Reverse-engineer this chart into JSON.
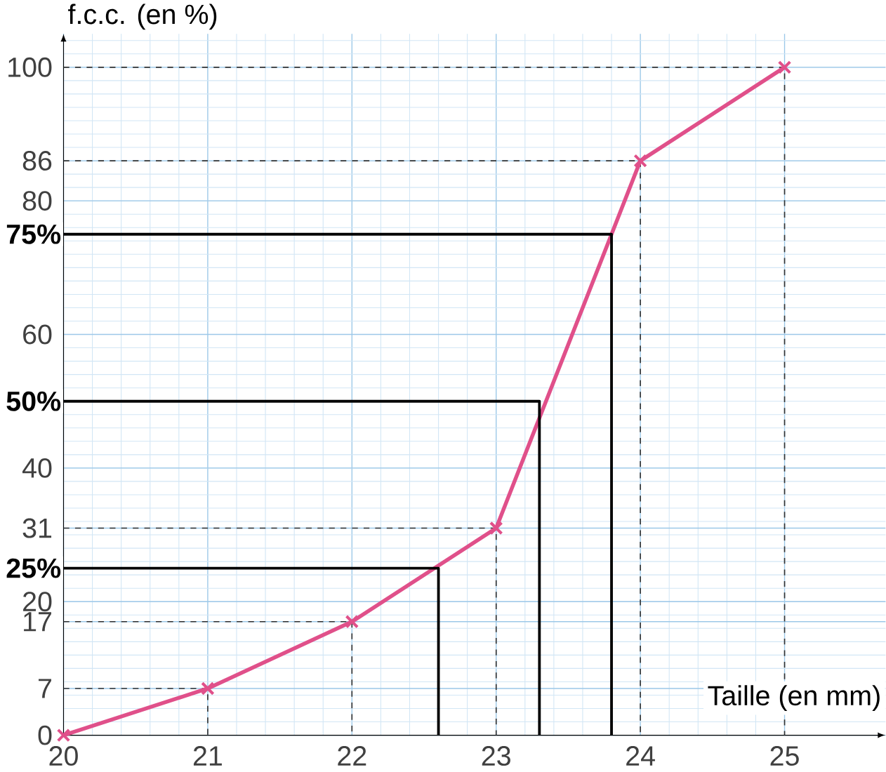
{
  "chart_data": {
    "type": "line",
    "xlabel": "Taille (en mm)",
    "ylabel": "f.c.c. (en %)",
    "x": [
      20,
      21,
      22,
      23,
      24,
      25
    ],
    "series": [
      {
        "color": "#333333",
        "line_style": "dashed",
        "marker": "none",
        "x": [
          20,
          21,
          21
        ],
        "values": [
          7,
          7,
          0
        ]
      },
      {
        "color": "#333333",
        "line_style": "dashed",
        "marker": "none",
        "x": [
          20,
          22,
          22
        ],
        "values": [
          17,
          17,
          0
        ]
      },
      {
        "color": "#333333",
        "line_style": "dashed",
        "marker": "none",
        "x": [
          20,
          23,
          23
        ],
        "values": [
          31,
          31,
          0
        ]
      },
      {
        "color": "#333333",
        "line_style": "dashed",
        "marker": "none",
        "x": [
          20,
          24,
          24
        ],
        "values": [
          86,
          86,
          0
        ]
      },
      {
        "color": "#333333",
        "line_style": "dashed",
        "marker": "none",
        "x": [
          20,
          25,
          25
        ],
        "values": [
          100,
          100,
          0
        ]
      },
      {
        "color": "#e0508a",
        "values": [
          0,
          7,
          17,
          31,
          86,
          100
        ]
      },
      {
        "name": "25%",
        "color": "#000000",
        "marker": "none",
        "x": [
          20,
          22.6,
          22.6
        ],
        "values": [
          25,
          25,
          0
        ]
      },
      {
        "name": "50%",
        "color": "#000000",
        "marker": "none",
        "x": [
          20,
          23.3,
          23.3
        ],
        "values": [
          50,
          50,
          0
        ]
      },
      {
        "name": "75%",
        "color": "#000000",
        "marker": "none",
        "x": [
          20,
          23.8,
          23.8
        ],
        "values": [
          75,
          75,
          0
        ]
      }
    ],
    "xlim": [
      20,
      25.7
    ],
    "ylim": [
      0,
      105
    ],
    "xticks": [
      20,
      21,
      22,
      23,
      24,
      25
    ],
    "yticks": [
      0,
      7,
      17,
      20,
      31,
      40,
      60,
      80,
      86,
      100
    ],
    "marker": "cross",
    "line_style": "solid",
    "grid": true,
    "legend": false
  }
}
